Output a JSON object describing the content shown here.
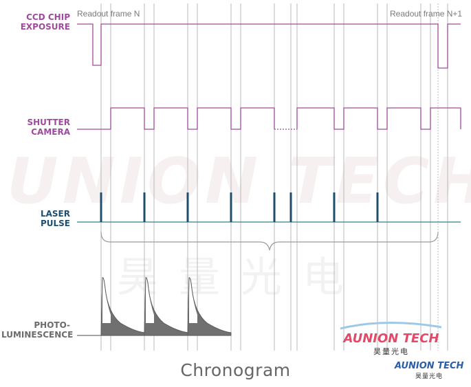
{
  "labels": {
    "ccd_line1": "CCD CHIP",
    "ccd_line2": "EXPOSURE",
    "shutter_line1": "SHUTTER",
    "shutter_line2": "CAMERA",
    "laser_line1": "LASER",
    "laser_line2": "PULSE",
    "photo_line1": "PHOTO-",
    "photo_line2": "LUMINESCENCE"
  },
  "annotations": {
    "readout_n": "Readout frame N",
    "readout_n1": "Readout frame N+1"
  },
  "title": "Chronogram",
  "watermark": {
    "text_en": "UNION TECH",
    "text_cn": "昊量光电",
    "logo_en": "AUNION TECH",
    "logo_cn": "昊量光电"
  },
  "colors": {
    "purple": "#a04a9e",
    "blue": "#1d4e6e",
    "teal": "#2e7f8e",
    "grey_fill": "#707070",
    "guide": "#b8b8b8"
  }
}
